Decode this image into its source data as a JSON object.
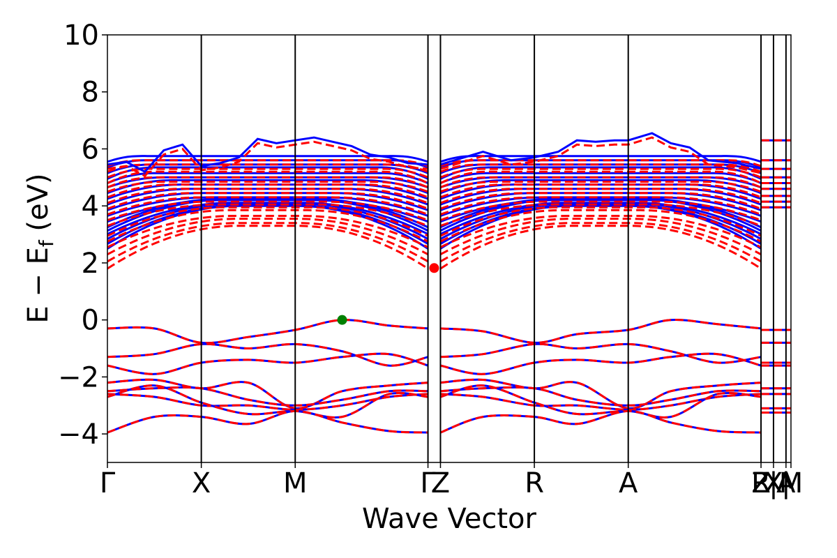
{
  "chart_data": {
    "type": "line",
    "xlabel": "Wave Vector",
    "ylabel": "E − E",
    "ylabel_sub": "f",
    "ylabel_unit": " (eV)",
    "ylim": [
      -5,
      10
    ],
    "xlim": [
      0,
      7.28
    ],
    "grid": false,
    "yticks": [
      -4,
      -2,
      0,
      2,
      4,
      6,
      8,
      10
    ],
    "ytick_labels": [
      "−4",
      "−2",
      "0",
      "2",
      "4",
      "6",
      "8",
      "10"
    ],
    "kpoint_ticks": [
      {
        "x": 0.0,
        "label": "Γ"
      },
      {
        "x": 1.0,
        "label": "X"
      },
      {
        "x": 2.0,
        "label": "M"
      },
      {
        "x": 3.414,
        "label": "Γ"
      },
      {
        "x": 3.547,
        "label": "Z"
      },
      {
        "x": 4.547,
        "label": "R"
      },
      {
        "x": 5.547,
        "label": "A"
      },
      {
        "x": 6.961,
        "label": "Z"
      },
      {
        "x": 6.961,
        "label": "R"
      },
      {
        "x": 7.094,
        "label": "|"
      },
      {
        "x": 7.094,
        "label": "X"
      },
      {
        "x": 7.227,
        "label": "|"
      },
      {
        "x": 7.227,
        "label": "A"
      },
      {
        "x": 7.28,
        "label": "M"
      }
    ],
    "vertical_lines": [
      1.0,
      2.0,
      3.414,
      3.547,
      4.547,
      5.547,
      6.961,
      7.094,
      7.227
    ],
    "vbm": {
      "x": 2.5,
      "y": 0.0,
      "color": "#008000"
    },
    "cbm": {
      "x": 3.48,
      "y": 1.82,
      "color": "#ff0000"
    },
    "series": [
      {
        "style": "solid",
        "color": "#0000ff",
        "width": 3
      },
      {
        "style": "dashed",
        "color": "#ff0000",
        "width": 3
      }
    ],
    "valence_bands": [
      {
        "segments": [
          [
            0,
            -0.3,
            0.5,
            -0.3,
            1.0,
            -0.8,
            1.5,
            -0.6,
            2.0,
            -0.35,
            2.5,
            0.0,
            3.0,
            -0.2,
            3.414,
            -0.3
          ],
          [
            3.547,
            -0.3,
            4.0,
            -0.4,
            4.547,
            -0.8,
            5.0,
            -0.5,
            5.547,
            -0.35,
            6.0,
            0.0,
            6.5,
            -0.15,
            6.961,
            -0.3
          ]
        ]
      },
      {
        "segments": [
          [
            0,
            -1.3,
            0.5,
            -1.2,
            1.0,
            -0.85,
            1.5,
            -1.0,
            2.0,
            -0.85,
            2.5,
            -1.1,
            3.0,
            -1.6,
            3.414,
            -1.3
          ],
          [
            3.547,
            -1.3,
            4.0,
            -1.2,
            4.547,
            -0.85,
            5.0,
            -1.0,
            5.547,
            -0.85,
            6.0,
            -1.1,
            6.5,
            -1.5,
            6.961,
            -1.3
          ]
        ]
      },
      {
        "segments": [
          [
            0,
            -1.6,
            0.5,
            -1.9,
            1.0,
            -1.5,
            1.5,
            -1.4,
            2.0,
            -1.5,
            2.5,
            -1.3,
            3.0,
            -1.2,
            3.414,
            -1.6
          ],
          [
            3.547,
            -1.6,
            4.0,
            -1.9,
            4.547,
            -1.5,
            5.0,
            -1.4,
            5.547,
            -1.5,
            6.0,
            -1.3,
            6.5,
            -1.2,
            6.961,
            -1.6
          ]
        ]
      },
      {
        "segments": [
          [
            0,
            -2.2,
            0.5,
            -2.1,
            1.0,
            -2.4,
            1.5,
            -2.2,
            2.0,
            -3.1,
            2.5,
            -2.5,
            3.0,
            -2.3,
            3.414,
            -2.2
          ],
          [
            3.547,
            -2.2,
            4.0,
            -2.1,
            4.547,
            -2.4,
            5.0,
            -2.2,
            5.547,
            -3.1,
            6.0,
            -2.5,
            6.5,
            -2.3,
            6.961,
            -2.2
          ]
        ]
      },
      {
        "segments": [
          [
            0,
            -2.5,
            0.5,
            -2.4,
            1.0,
            -2.4,
            1.5,
            -2.8,
            2.0,
            -3.0,
            2.5,
            -2.8,
            3.0,
            -2.5,
            3.414,
            -2.5
          ],
          [
            3.547,
            -2.5,
            4.0,
            -2.4,
            4.547,
            -2.4,
            5.0,
            -2.8,
            5.547,
            -3.0,
            6.0,
            -2.8,
            6.5,
            -2.5,
            6.961,
            -2.5
          ]
        ]
      },
      {
        "segments": [
          [
            0,
            -2.6,
            0.5,
            -2.7,
            1.0,
            -3.0,
            1.5,
            -3.0,
            2.0,
            -3.15,
            2.5,
            -3.0,
            3.0,
            -2.7,
            3.414,
            -2.6
          ],
          [
            3.547,
            -2.6,
            4.0,
            -2.7,
            4.547,
            -3.0,
            5.0,
            -3.0,
            5.547,
            -3.15,
            6.0,
            -3.0,
            6.5,
            -2.7,
            6.961,
            -2.6
          ]
        ]
      },
      {
        "segments": [
          [
            0,
            -2.7,
            0.5,
            -2.3,
            1.0,
            -2.9,
            1.5,
            -3.3,
            2.0,
            -3.2,
            2.5,
            -3.4,
            3.0,
            -2.6,
            3.414,
            -2.7
          ],
          [
            3.547,
            -2.7,
            4.0,
            -2.3,
            4.547,
            -2.9,
            5.0,
            -3.3,
            5.547,
            -3.2,
            6.0,
            -3.4,
            6.5,
            -2.6,
            6.961,
            -2.7
          ]
        ]
      },
      {
        "segments": [
          [
            0,
            -3.95,
            0.5,
            -3.4,
            1.0,
            -3.4,
            1.5,
            -3.65,
            2.0,
            -3.2,
            2.5,
            -3.6,
            3.0,
            -3.9,
            3.414,
            -3.95
          ],
          [
            3.547,
            -3.95,
            4.0,
            -3.4,
            4.547,
            -3.4,
            5.0,
            -3.65,
            5.547,
            -3.2,
            6.0,
            -3.6,
            6.5,
            -3.9,
            6.961,
            -3.95
          ]
        ]
      }
    ],
    "conduction_bands": [
      {
        "g": 1.8,
        "m": 3.3,
        "s": 1.4
      },
      {
        "g": 2.05,
        "m": 3.4,
        "s": 1.4
      },
      {
        "g": 2.3,
        "m": 3.55,
        "s": 1.4
      },
      {
        "g": 2.55,
        "m": 3.65,
        "s": 1.35
      },
      {
        "g": 2.75,
        "m": 3.85,
        "s": 1.3
      },
      {
        "g": 2.95,
        "m": 3.95,
        "s": 1.25
      },
      {
        "g": 3.3,
        "m": 4.05,
        "s": 1.2
      },
      {
        "g": 3.5,
        "m": 4.15,
        "s": 1.1
      },
      {
        "g": 3.7,
        "m": 4.3,
        "s": 1.0
      },
      {
        "g": 3.9,
        "m": 4.45,
        "s": 0.9
      },
      {
        "g": 4.1,
        "m": 4.6,
        "s": 0.8
      },
      {
        "g": 4.3,
        "m": 4.75,
        "s": 0.7
      },
      {
        "g": 4.5,
        "m": 4.85,
        "s": 0.6
      },
      {
        "g": 4.65,
        "m": 5.0,
        "s": 0.5
      },
      {
        "g": 4.8,
        "m": 5.2,
        "s": 0.5
      },
      {
        "g": 5.0,
        "m": 5.3,
        "s": 0.45
      },
      {
        "g": 5.2,
        "m": 5.45,
        "s": 0.4
      },
      {
        "g": 5.4,
        "m": 5.6,
        "s": 0.35
      }
    ],
    "upper_wiggles": [
      [
        0,
        5.45,
        0.2,
        5.55,
        0.4,
        5.2,
        0.6,
        5.95,
        0.8,
        6.15,
        1.0,
        5.4,
        1.2,
        5.5,
        1.4,
        5.7,
        1.6,
        6.35,
        1.8,
        6.2,
        2.0,
        6.3,
        2.2,
        6.4,
        2.4,
        6.25,
        2.6,
        6.1,
        2.8,
        5.8,
        3.0,
        5.7,
        3.2,
        5.5,
        3.414,
        5.45
      ],
      [
        3.547,
        5.45,
        3.8,
        5.7,
        4.0,
        5.9,
        4.3,
        5.6,
        4.547,
        5.7,
        4.8,
        5.9,
        5.0,
        6.3,
        5.2,
        6.25,
        5.4,
        6.3,
        5.547,
        6.3,
        5.8,
        6.55,
        6.0,
        6.2,
        6.2,
        6.05,
        6.4,
        5.6,
        6.7,
        5.5,
        6.961,
        5.3
      ]
    ],
    "right_stubs": [
      -3.25,
      -3.1,
      -2.6,
      -2.4,
      -1.6,
      -1.5,
      -0.8,
      -0.35,
      3.95,
      4.15,
      4.35,
      4.6,
      4.8,
      5.0,
      5.3,
      5.6,
      6.3
    ]
  }
}
